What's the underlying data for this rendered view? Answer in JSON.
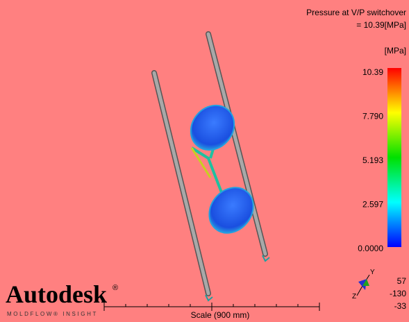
{
  "header": {
    "title": "Pressure at V/P switchover",
    "value": "= 10.39[MPa]",
    "unit": "[MPa]"
  },
  "legend": {
    "labels": [
      "10.39",
      "7.790",
      "5.193",
      "2.597",
      "0.0000"
    ]
  },
  "logo": {
    "name": "Autodesk",
    "mark": "®",
    "product": "MOLDFLOW® INSIGHT"
  },
  "scale": {
    "label": "Scale (900 mm)"
  },
  "orientation": {
    "axes": [
      "Y",
      "Z"
    ],
    "angles": [
      "57",
      "-130",
      "-33"
    ]
  }
}
